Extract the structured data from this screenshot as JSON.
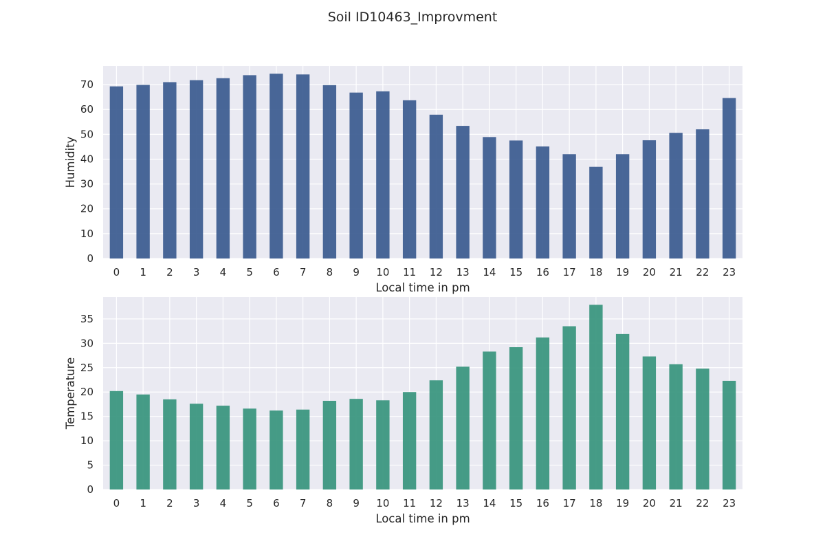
{
  "suptitle": "Soil ID10463_Improvment",
  "chart_data": [
    {
      "type": "bar",
      "xlabel": "Local time in pm",
      "ylabel": "Humidity",
      "categories": [
        "0",
        "1",
        "2",
        "3",
        "4",
        "5",
        "6",
        "7",
        "8",
        "9",
        "10",
        "11",
        "12",
        "13",
        "14",
        "15",
        "16",
        "17",
        "18",
        "19",
        "20",
        "21",
        "22",
        "23"
      ],
      "values": [
        69.3,
        69.9,
        71.0,
        71.8,
        72.6,
        73.8,
        74.4,
        74.1,
        69.8,
        66.8,
        67.3,
        63.7,
        57.9,
        53.4,
        48.9,
        47.5,
        45.1,
        42.0,
        36.9,
        42.0,
        47.6,
        50.6,
        52.0,
        64.6
      ],
      "ylim": [
        0,
        77.5
      ],
      "yticks": [
        0,
        10,
        20,
        30,
        40,
        50,
        60,
        70
      ],
      "color": "#3a5a8f",
      "grid": true
    },
    {
      "type": "bar",
      "xlabel": "Local time in pm",
      "ylabel": "Temperature",
      "categories": [
        "0",
        "1",
        "2",
        "3",
        "4",
        "5",
        "6",
        "7",
        "8",
        "9",
        "10",
        "11",
        "12",
        "13",
        "14",
        "15",
        "16",
        "17",
        "18",
        "19",
        "20",
        "21",
        "22",
        "23"
      ],
      "values": [
        20.2,
        19.5,
        18.5,
        17.6,
        17.2,
        16.6,
        16.2,
        16.4,
        18.2,
        18.6,
        18.3,
        20.0,
        22.4,
        25.2,
        28.3,
        29.2,
        31.2,
        33.5,
        37.9,
        31.9,
        27.3,
        25.7,
        24.8,
        22.3
      ],
      "ylim": [
        0,
        39.5
      ],
      "yticks": [
        0,
        5,
        10,
        15,
        20,
        25,
        30,
        35
      ],
      "color": "#36947d",
      "grid": true
    }
  ]
}
